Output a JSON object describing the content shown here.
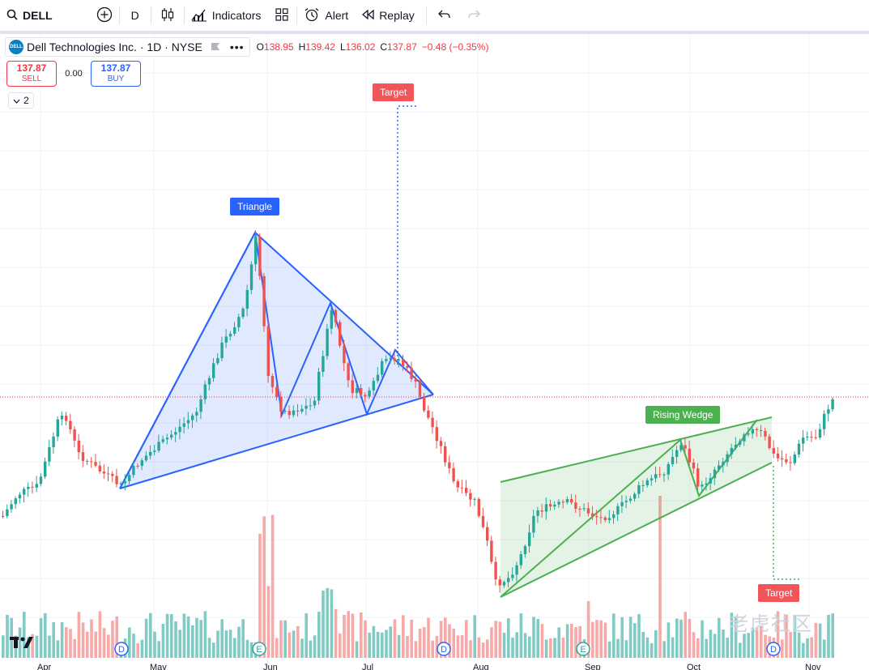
{
  "toolbar": {
    "symbol": "DELL",
    "interval": "D",
    "indicators_label": "Indicators",
    "alert_label": "Alert",
    "replay_label": "Replay"
  },
  "legend": {
    "title": "Dell Technologies Inc. · 1D · NYSE",
    "logo_text": "DELL",
    "open_label": "O",
    "open": "138.95",
    "high_label": "H",
    "high": "139.42",
    "low_label": "L",
    "low": "136.02",
    "close_label": "C",
    "close": "137.87",
    "change": "−0.48 (−0.35%)"
  },
  "trade": {
    "sell_price": "137.87",
    "sell_label": "SELL",
    "spread": "0.00",
    "buy_price": "137.87",
    "buy_label": "BUY"
  },
  "collapse": {
    "count": "2"
  },
  "annotations": {
    "triangle": "Triangle",
    "target_top": "Target",
    "rising_wedge": "Rising Wedge",
    "target_bottom": "Target"
  },
  "months": [
    "Apr",
    "May",
    "Jun",
    "Jul",
    "Aug",
    "Sep",
    "Oct",
    "Nov"
  ],
  "markers": [
    "D",
    "E",
    "D",
    "E",
    "D"
  ],
  "watermark": "老虎社区",
  "colors": {
    "up": "#26a69a",
    "down": "#ef5350",
    "triangle": "#2962ff",
    "wedge": "#4caf50",
    "last_price_line": "#f23645"
  }
}
